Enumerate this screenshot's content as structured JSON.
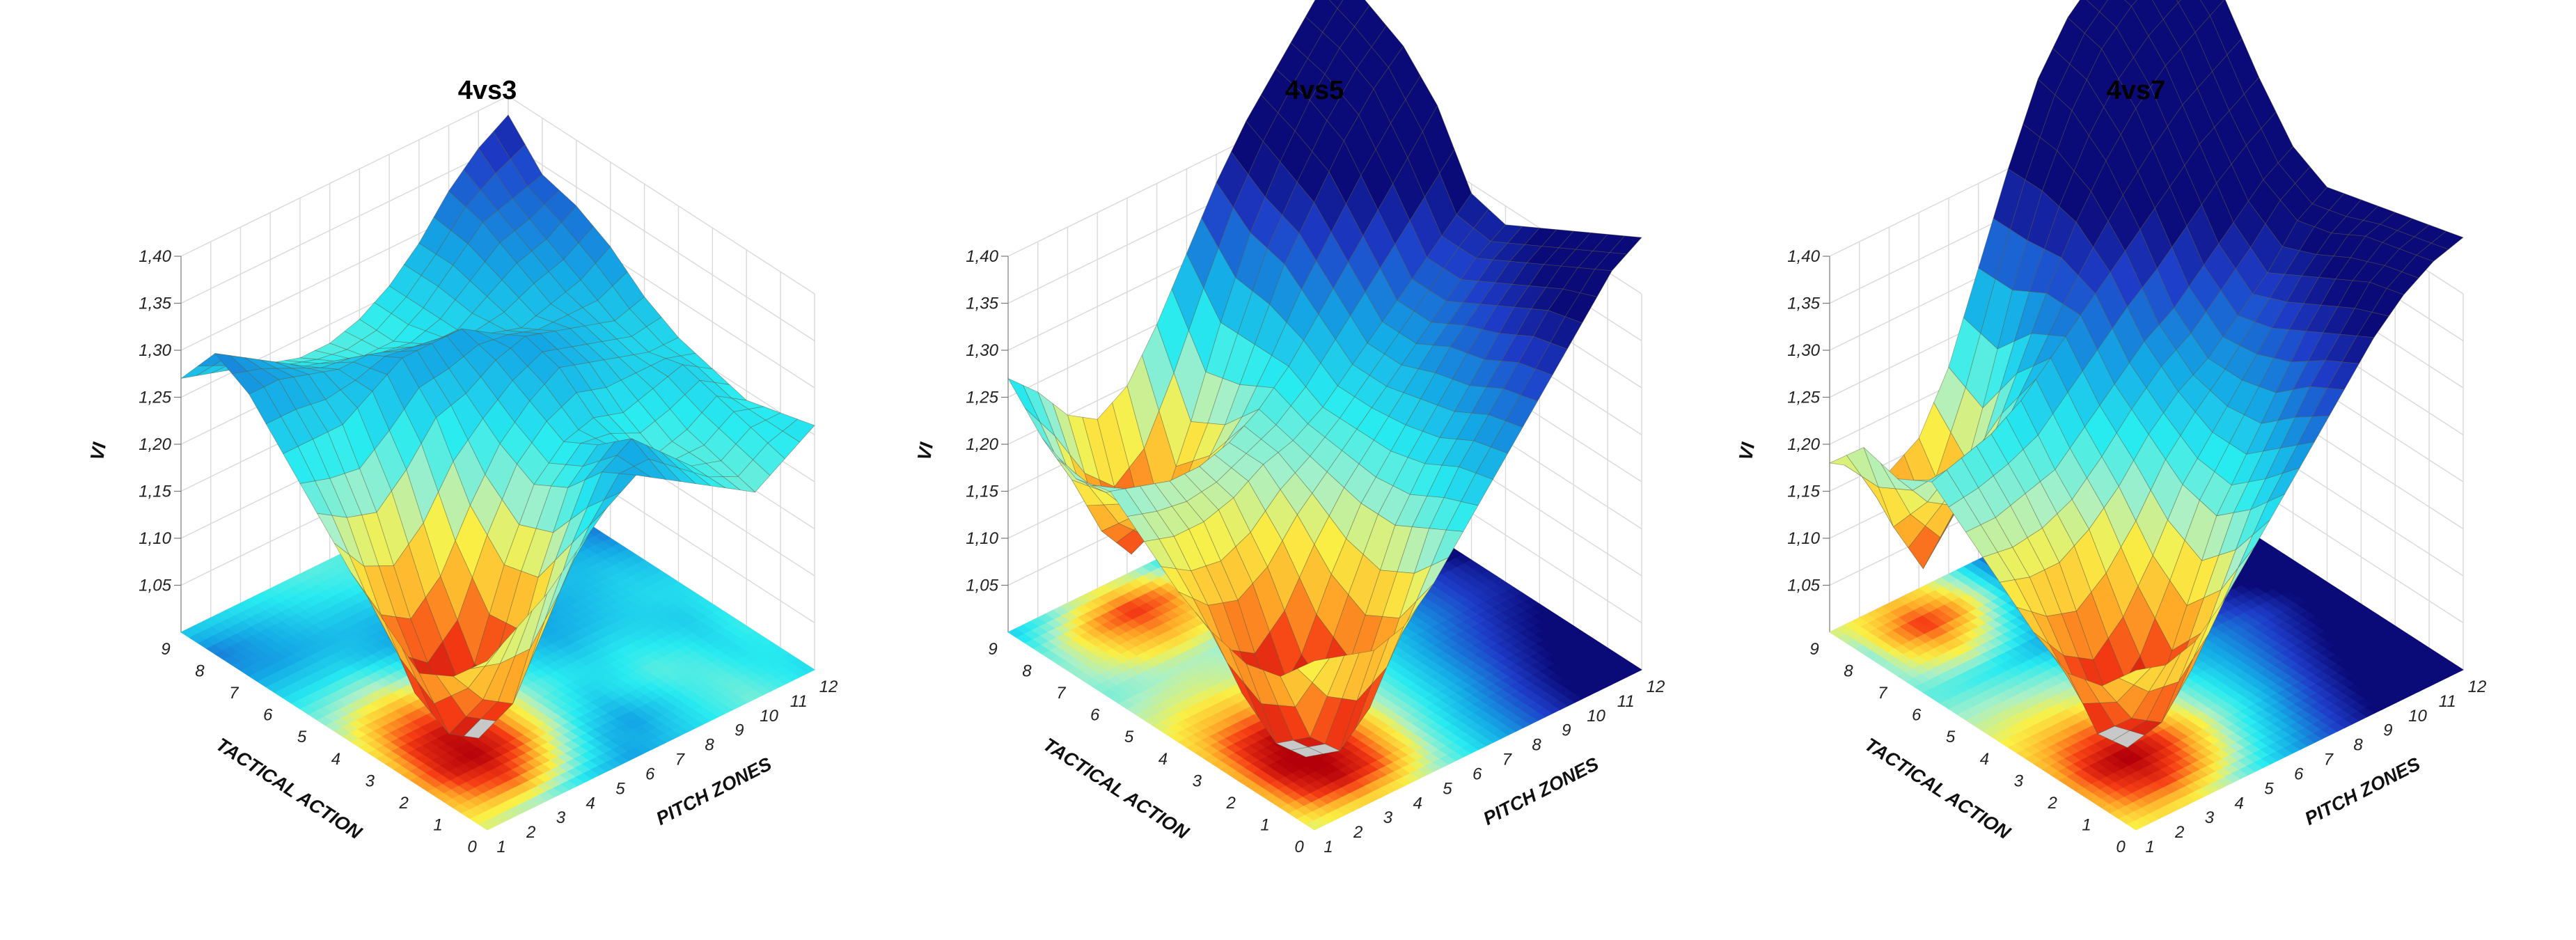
{
  "chart_data": [
    {
      "type": "surface3d",
      "title": "4vs3",
      "xlabel": "TACTICAL ACTION",
      "ylabel": "PITCH ZONES",
      "zlabel": "VI",
      "x_ticks": [
        "0",
        "1",
        "2",
        "3",
        "4",
        "5",
        "6",
        "7",
        "8",
        "9"
      ],
      "y_ticks": [
        "1",
        "2",
        "3",
        "4",
        "5",
        "6",
        "7",
        "8",
        "9",
        "10",
        "11",
        "12"
      ],
      "z_ticks": [
        "1,05",
        "1,10",
        "1,15",
        "1,20",
        "1,25",
        "1,30",
        "1,35",
        "1,40"
      ],
      "zlim": [
        1.0,
        1.4
      ],
      "x_range": [
        0,
        9
      ],
      "y_range": [
        1,
        12
      ],
      "grid": [
        [
          1.18,
          1.2,
          1.22,
          1.25,
          1.28,
          1.3,
          1.28,
          1.26,
          1.24,
          1.22,
          1.24,
          1.26
        ],
        [
          1.14,
          1.1,
          1.08,
          1.14,
          1.22,
          1.28,
          1.3,
          1.27,
          1.24,
          1.23,
          1.25,
          1.25
        ],
        [
          1.12,
          1.04,
          1.02,
          1.06,
          1.16,
          1.24,
          1.27,
          1.25,
          1.23,
          1.24,
          1.26,
          1.24
        ],
        [
          1.15,
          1.06,
          1.03,
          1.06,
          1.15,
          1.22,
          1.25,
          1.26,
          1.25,
          1.26,
          1.27,
          1.25
        ],
        [
          1.18,
          1.12,
          1.1,
          1.13,
          1.19,
          1.24,
          1.27,
          1.29,
          1.28,
          1.27,
          1.26,
          1.26
        ],
        [
          1.22,
          1.2,
          1.19,
          1.22,
          1.26,
          1.27,
          1.29,
          1.3,
          1.29,
          1.28,
          1.27,
          1.28
        ],
        [
          1.26,
          1.26,
          1.26,
          1.28,
          1.3,
          1.3,
          1.3,
          1.28,
          1.27,
          1.28,
          1.29,
          1.31
        ],
        [
          1.3,
          1.3,
          1.29,
          1.28,
          1.28,
          1.27,
          1.26,
          1.26,
          1.28,
          1.3,
          1.31,
          1.33
        ],
        [
          1.32,
          1.3,
          1.28,
          1.26,
          1.25,
          1.24,
          1.24,
          1.26,
          1.29,
          1.32,
          1.33,
          1.34
        ],
        [
          1.27,
          1.26,
          1.25,
          1.24,
          1.23,
          1.23,
          1.24,
          1.26,
          1.29,
          1.33,
          1.36,
          1.38
        ]
      ]
    },
    {
      "type": "surface3d",
      "title": "4vs5",
      "xlabel": "TACTICAL ACTION",
      "ylabel": "PITCH ZONES",
      "zlabel": "VI",
      "x_ticks": [
        "0",
        "1",
        "2",
        "3",
        "4",
        "5",
        "6",
        "7",
        "8",
        "9"
      ],
      "y_ticks": [
        "1",
        "2",
        "3",
        "4",
        "5",
        "6",
        "7",
        "8",
        "9",
        "10",
        "11",
        "12"
      ],
      "z_ticks": [
        "1,05",
        "1,10",
        "1,15",
        "1,20",
        "1,25",
        "1,30",
        "1,35",
        "1,40"
      ],
      "zlim": [
        1.0,
        1.4
      ],
      "x_range": [
        0,
        9
      ],
      "y_range": [
        1,
        12
      ],
      "grid": [
        [
          1.18,
          1.17,
          1.16,
          1.17,
          1.2,
          1.24,
          1.28,
          1.32,
          1.36,
          1.4,
          1.44,
          1.46
        ],
        [
          1.14,
          1.06,
          1.03,
          1.06,
          1.14,
          1.22,
          1.27,
          1.31,
          1.35,
          1.39,
          1.42,
          1.44
        ],
        [
          1.13,
          1.03,
          1.0,
          1.04,
          1.12,
          1.2,
          1.25,
          1.29,
          1.33,
          1.37,
          1.4,
          1.42
        ],
        [
          1.14,
          1.06,
          1.03,
          1.07,
          1.14,
          1.2,
          1.24,
          1.28,
          1.32,
          1.35,
          1.38,
          1.4
        ],
        [
          1.16,
          1.13,
          1.12,
          1.14,
          1.18,
          1.21,
          1.24,
          1.27,
          1.3,
          1.33,
          1.36,
          1.38
        ],
        [
          1.19,
          1.18,
          1.18,
          1.19,
          1.21,
          1.22,
          1.24,
          1.27,
          1.3,
          1.33,
          1.36,
          1.39
        ],
        [
          1.22,
          1.21,
          1.2,
          1.2,
          1.21,
          1.23,
          1.26,
          1.3,
          1.34,
          1.38,
          1.42,
          1.46
        ],
        [
          1.21,
          1.18,
          1.14,
          1.12,
          1.14,
          1.19,
          1.26,
          1.33,
          1.38,
          1.43,
          1.47,
          1.5
        ],
        [
          1.23,
          1.17,
          1.1,
          1.06,
          1.09,
          1.17,
          1.26,
          1.34,
          1.4,
          1.45,
          1.49,
          1.52
        ],
        [
          1.27,
          1.24,
          1.2,
          1.18,
          1.2,
          1.25,
          1.31,
          1.37,
          1.42,
          1.46,
          1.5,
          1.54
        ]
      ]
    },
    {
      "type": "surface3d",
      "title": "4vs7",
      "xlabel": "TACTICAL ACTION",
      "ylabel": "PITCH ZONES",
      "zlabel": "VI",
      "x_ticks": [
        "0",
        "1",
        "2",
        "3",
        "4",
        "5",
        "6",
        "7",
        "8",
        "9"
      ],
      "y_ticks": [
        "1",
        "2",
        "3",
        "4",
        "5",
        "6",
        "7",
        "8",
        "9",
        "10",
        "11",
        "12"
      ],
      "z_ticks": [
        "1,05",
        "1,10",
        "1,15",
        "1,20",
        "1,25",
        "1,30",
        "1,35",
        "1,40"
      ],
      "zlim": [
        1.0,
        1.4
      ],
      "x_range": [
        0,
        9
      ],
      "y_range": [
        1,
        12
      ],
      "grid": [
        [
          1.17,
          1.16,
          1.17,
          1.2,
          1.24,
          1.28,
          1.32,
          1.36,
          1.4,
          1.43,
          1.45,
          1.46
        ],
        [
          1.13,
          1.08,
          1.06,
          1.1,
          1.17,
          1.24,
          1.29,
          1.34,
          1.38,
          1.42,
          1.44,
          1.45
        ],
        [
          1.12,
          1.04,
          1.01,
          1.05,
          1.13,
          1.21,
          1.26,
          1.31,
          1.36,
          1.4,
          1.43,
          1.44
        ],
        [
          1.14,
          1.1,
          1.08,
          1.11,
          1.16,
          1.22,
          1.26,
          1.3,
          1.34,
          1.38,
          1.41,
          1.43
        ],
        [
          1.17,
          1.16,
          1.16,
          1.18,
          1.21,
          1.25,
          1.28,
          1.3,
          1.33,
          1.36,
          1.4,
          1.42
        ],
        [
          1.2,
          1.2,
          1.21,
          1.22,
          1.25,
          1.28,
          1.31,
          1.33,
          1.36,
          1.39,
          1.42,
          1.44
        ],
        [
          1.23,
          1.24,
          1.25,
          1.27,
          1.3,
          1.33,
          1.36,
          1.39,
          1.42,
          1.45,
          1.47,
          1.49
        ],
        [
          1.21,
          1.17,
          1.15,
          1.19,
          1.26,
          1.33,
          1.39,
          1.44,
          1.48,
          1.51,
          1.53,
          1.55
        ],
        [
          1.22,
          1.12,
          1.06,
          1.1,
          1.2,
          1.31,
          1.4,
          1.47,
          1.52,
          1.55,
          1.57,
          1.58
        ],
        [
          1.18,
          1.16,
          1.14,
          1.16,
          1.22,
          1.31,
          1.4,
          1.48,
          1.53,
          1.56,
          1.58,
          1.6
        ]
      ]
    }
  ]
}
